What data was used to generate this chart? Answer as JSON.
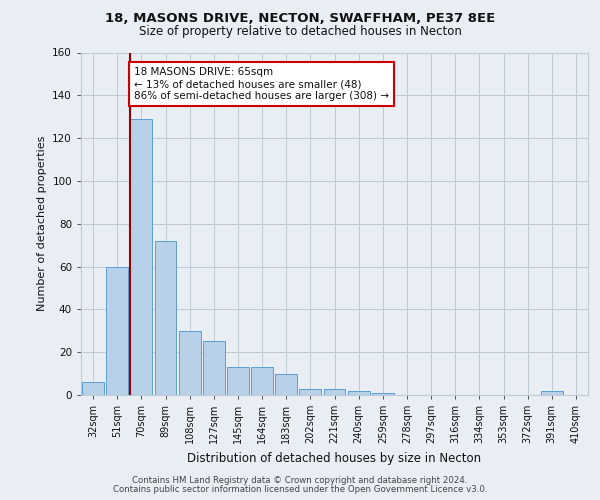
{
  "title1": "18, MASONS DRIVE, NECTON, SWAFFHAM, PE37 8EE",
  "title2": "Size of property relative to detached houses in Necton",
  "xlabel": "Distribution of detached houses by size in Necton",
  "ylabel": "Number of detached properties",
  "footer1": "Contains HM Land Registry data © Crown copyright and database right 2024.",
  "footer2": "Contains public sector information licensed under the Open Government Licence v3.0.",
  "bin_labels": [
    "32sqm",
    "51sqm",
    "70sqm",
    "89sqm",
    "108sqm",
    "127sqm",
    "145sqm",
    "164sqm",
    "183sqm",
    "202sqm",
    "221sqm",
    "240sqm",
    "259sqm",
    "278sqm",
    "297sqm",
    "316sqm",
    "334sqm",
    "353sqm",
    "372sqm",
    "391sqm",
    "410sqm"
  ],
  "bin_values": [
    6,
    60,
    129,
    72,
    30,
    25,
    13,
    13,
    10,
    3,
    3,
    2,
    1,
    0,
    0,
    0,
    0,
    0,
    0,
    2,
    0
  ],
  "bar_color": "#b8d0e8",
  "bar_edge_color": "#5a9fd4",
  "property_line_bin": 2,
  "property_line_color": "#990000",
  "annotation_text": "18 MASONS DRIVE: 65sqm\n← 13% of detached houses are smaller (48)\n86% of semi-detached houses are larger (308) →",
  "annotation_box_color": "white",
  "annotation_box_edge_color": "#cc0000",
  "ylim": [
    0,
    160
  ],
  "yticks": [
    0,
    20,
    40,
    60,
    80,
    100,
    120,
    140,
    160
  ],
  "bg_color": "#e8eef4",
  "plot_bg_color": "#e8eef4",
  "grid_color": "#c0cad6"
}
